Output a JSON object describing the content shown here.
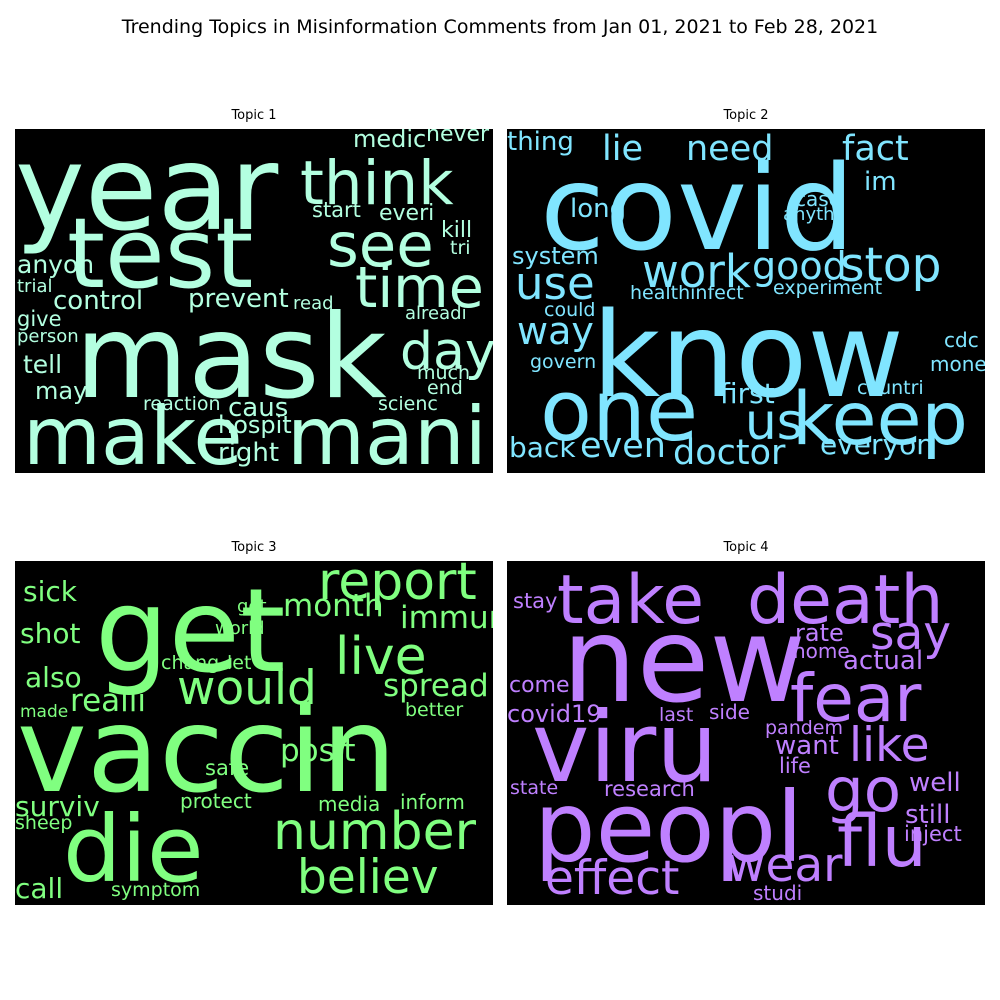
{
  "chart_data": {
    "type": "wordcloud",
    "title": "Trending Topics in Misinformation Comments from Jan 01, 2021 to Feb 28, 2021",
    "panels": [
      {
        "title": "Topic 1",
        "color": "#b3ffe0",
        "words": [
          {
            "text": "year",
            "weight": 1.0
          },
          {
            "text": "mask",
            "weight": 0.98
          },
          {
            "text": "test",
            "weight": 0.82
          },
          {
            "text": "make",
            "weight": 0.68
          },
          {
            "text": "mani",
            "weight": 0.68
          },
          {
            "text": "think",
            "weight": 0.52
          },
          {
            "text": "see",
            "weight": 0.52
          },
          {
            "text": "time",
            "weight": 0.48
          },
          {
            "text": "day",
            "weight": 0.44
          },
          {
            "text": "control",
            "weight": 0.22
          },
          {
            "text": "prevent",
            "weight": 0.22
          },
          {
            "text": "caus",
            "weight": 0.22
          },
          {
            "text": "hospit",
            "weight": 0.2
          },
          {
            "text": "right",
            "weight": 0.22
          },
          {
            "text": "anyon",
            "weight": 0.21
          },
          {
            "text": "tell",
            "weight": 0.21
          },
          {
            "text": "may",
            "weight": 0.2
          },
          {
            "text": "medic",
            "weight": 0.2
          },
          {
            "text": "never",
            "weight": 0.19
          },
          {
            "text": "start",
            "weight": 0.18
          },
          {
            "text": "everi",
            "weight": 0.19
          },
          {
            "text": "kill",
            "weight": 0.19
          },
          {
            "text": "tri",
            "weight": 0.16
          },
          {
            "text": "give",
            "weight": 0.18
          },
          {
            "text": "trial",
            "weight": 0.15
          },
          {
            "text": "person",
            "weight": 0.15
          },
          {
            "text": "read",
            "weight": 0.15
          },
          {
            "text": "alreadi",
            "weight": 0.15
          },
          {
            "text": "much",
            "weight": 0.16
          },
          {
            "text": "end",
            "weight": 0.16
          },
          {
            "text": "reaction",
            "weight": 0.16
          },
          {
            "text": "scienc",
            "weight": 0.16
          }
        ]
      },
      {
        "title": "Topic 2",
        "color": "#80e5ff",
        "words": [
          {
            "text": "covid",
            "weight": 1.0
          },
          {
            "text": "know",
            "weight": 1.0
          },
          {
            "text": "one",
            "weight": 0.72
          },
          {
            "text": "keep",
            "weight": 0.62
          },
          {
            "text": "us",
            "weight": 0.42
          },
          {
            "text": "stop",
            "weight": 0.4
          },
          {
            "text": "work",
            "weight": 0.38
          },
          {
            "text": "use",
            "weight": 0.38
          },
          {
            "text": "good",
            "weight": 0.32
          },
          {
            "text": "way",
            "weight": 0.32
          },
          {
            "text": "need",
            "weight": 0.3
          },
          {
            "text": "fact",
            "weight": 0.3
          },
          {
            "text": "lie",
            "weight": 0.3
          },
          {
            "text": "even",
            "weight": 0.3
          },
          {
            "text": "doctor",
            "weight": 0.3
          },
          {
            "text": "first",
            "weight": 0.24
          },
          {
            "text": "everyon",
            "weight": 0.24
          },
          {
            "text": "back",
            "weight": 0.24
          },
          {
            "text": "thing",
            "weight": 0.22
          },
          {
            "text": "long",
            "weight": 0.22
          },
          {
            "text": "im",
            "weight": 0.22
          },
          {
            "text": "system",
            "weight": 0.2
          },
          {
            "text": "case",
            "weight": 0.17
          },
          {
            "text": "anyth",
            "weight": 0.15
          },
          {
            "text": "could",
            "weight": 0.16
          },
          {
            "text": "healthinfect",
            "weight": 0.16
          },
          {
            "text": "experiment",
            "weight": 0.16
          },
          {
            "text": "govern",
            "weight": 0.16
          },
          {
            "text": "cdc",
            "weight": 0.17
          },
          {
            "text": "money",
            "weight": 0.17
          },
          {
            "text": "countri",
            "weight": 0.16
          }
        ]
      },
      {
        "title": "Topic 3",
        "color": "#80ff80",
        "words": [
          {
            "text": "vaccin",
            "weight": 1.0
          },
          {
            "text": "get",
            "weight": 0.98
          },
          {
            "text": "die",
            "weight": 0.78
          },
          {
            "text": "report",
            "weight": 0.44
          },
          {
            "text": "live",
            "weight": 0.44
          },
          {
            "text": "would",
            "weight": 0.4
          },
          {
            "text": "number",
            "weight": 0.44
          },
          {
            "text": "believ",
            "weight": 0.4
          },
          {
            "text": "month",
            "weight": 0.26
          },
          {
            "text": "immun",
            "weight": 0.26
          },
          {
            "text": "spread",
            "weight": 0.26
          },
          {
            "text": "realli",
            "weight": 0.26
          },
          {
            "text": "posit",
            "weight": 0.26
          },
          {
            "text": "sick",
            "weight": 0.24
          },
          {
            "text": "shot",
            "weight": 0.24
          },
          {
            "text": "also",
            "weight": 0.24
          },
          {
            "text": "surviv",
            "weight": 0.24
          },
          {
            "text": "call",
            "weight": 0.24
          },
          {
            "text": "got",
            "weight": 0.15
          },
          {
            "text": "world",
            "weight": 0.15
          },
          {
            "text": "chang",
            "weight": 0.16
          },
          {
            "text": "let",
            "weight": 0.16
          },
          {
            "text": "made",
            "weight": 0.14
          },
          {
            "text": "better",
            "weight": 0.16
          },
          {
            "text": "safe",
            "weight": 0.18
          },
          {
            "text": "protect",
            "weight": 0.17
          },
          {
            "text": "media",
            "weight": 0.17
          },
          {
            "text": "inform",
            "weight": 0.17
          },
          {
            "text": "sheep",
            "weight": 0.16
          },
          {
            "text": "symptom",
            "weight": 0.16
          }
        ]
      },
      {
        "title": "Topic 4",
        "color": "#bf80ff",
        "words": [
          {
            "text": "new",
            "weight": 1.0
          },
          {
            "text": "viru",
            "weight": 0.82
          },
          {
            "text": "peopl",
            "weight": 0.82
          },
          {
            "text": "take",
            "weight": 0.58
          },
          {
            "text": "death",
            "weight": 0.58
          },
          {
            "text": "fear",
            "weight": 0.56
          },
          {
            "text": "go",
            "weight": 0.52
          },
          {
            "text": "flu",
            "weight": 0.6
          },
          {
            "text": "like",
            "weight": 0.4
          },
          {
            "text": "say",
            "weight": 0.4
          },
          {
            "text": "effect",
            "weight": 0.4
          },
          {
            "text": "wear",
            "weight": 0.4
          },
          {
            "text": "rate",
            "weight": 0.2
          },
          {
            "text": "actual",
            "weight": 0.22
          },
          {
            "text": "home",
            "weight": 0.17
          },
          {
            "text": "want",
            "weight": 0.22
          },
          {
            "text": "well",
            "weight": 0.22
          },
          {
            "text": "still",
            "weight": 0.22
          },
          {
            "text": "inject",
            "weight": 0.18
          },
          {
            "text": "life",
            "weight": 0.18
          },
          {
            "text": "stay",
            "weight": 0.18
          },
          {
            "text": "come",
            "weight": 0.19
          },
          {
            "text": "covid19",
            "weight": 0.2
          },
          {
            "text": "last",
            "weight": 0.16
          },
          {
            "text": "side",
            "weight": 0.17
          },
          {
            "text": "pandem",
            "weight": 0.16
          },
          {
            "text": "state",
            "weight": 0.16
          },
          {
            "text": "research",
            "weight": 0.18
          },
          {
            "text": "studi",
            "weight": 0.17
          }
        ]
      }
    ]
  }
}
